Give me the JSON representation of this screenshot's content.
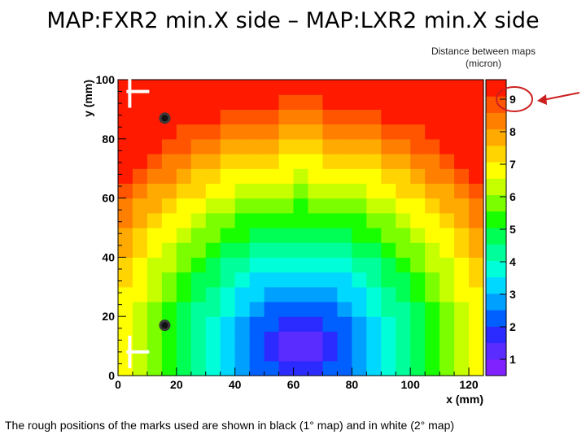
{
  "slide": {
    "title": "MAP:FXR2 min.X side – MAP:LXR2 min.X side",
    "caption": "The rough positions of the marks used are shown in black (1° map) and in white (2° map)"
  },
  "colors": {
    "highlight_ellipse": "#cc1f1f",
    "arrow": "#cc1f1f",
    "mark_black": "#111111",
    "mark_white": "#ffffff",
    "palette": [
      "#7f22ff",
      "#5a2cff",
      "#2b2bff",
      "#005fff",
      "#00a0ff",
      "#00d8ff",
      "#00ffd8",
      "#00ff9a",
      "#00ff55",
      "#18ff00",
      "#7bff00",
      "#c6ff00",
      "#ffff00",
      "#ffd400",
      "#ffaa00",
      "#ff8000",
      "#ff5500",
      "#ff1a00"
    ]
  },
  "chart_data": {
    "type": "heatmap",
    "title": "",
    "xlabel": "x (mm)",
    "ylabel": "y (mm)",
    "xlim": [
      0,
      125
    ],
    "ylim": [
      0,
      100
    ],
    "x_ticks": [
      0,
      20,
      40,
      60,
      80,
      100,
      120
    ],
    "y_ticks": [
      0,
      20,
      40,
      60,
      80,
      100
    ],
    "grid": false,
    "colorbar": {
      "title": "Distance between maps (micron)",
      "min": 0.5,
      "max": 9.6,
      "ticks": [
        1,
        2,
        3,
        4,
        5,
        6,
        7,
        8,
        9
      ],
      "highlighted_tick": 9
    },
    "cell_size_mm": 5,
    "field_model": {
      "center_x": 62.5,
      "center_y": 10,
      "min_value": 0.8,
      "value_per_mm": 0.1
    },
    "marks": [
      {
        "set": "1° map",
        "color": "black",
        "x": 16,
        "y": 87
      },
      {
        "set": "1° map",
        "color": "black",
        "x": 16,
        "y": 17
      },
      {
        "set": "2° map",
        "color": "white",
        "x": 4,
        "y": 96
      },
      {
        "set": "2° map",
        "color": "white",
        "x": 4,
        "y": 8
      }
    ]
  }
}
